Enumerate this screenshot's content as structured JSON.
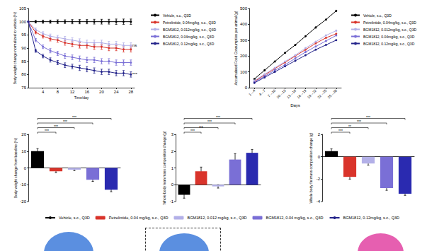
{
  "chart_data": [
    {
      "type": "line",
      "x_label": "Time/day",
      "y_label": "Body weight change normalized to vehicle (%)",
      "x": [
        0,
        2,
        4,
        6,
        8,
        10,
        12,
        14,
        16,
        18,
        20,
        22,
        24,
        26,
        28
      ],
      "xlim": [
        0,
        29
      ],
      "xticks": [
        4,
        8,
        12,
        16,
        20,
        24,
        28
      ],
      "ylim": [
        75,
        105
      ],
      "yticks": [
        75,
        80,
        85,
        90,
        95,
        100,
        105
      ],
      "grid": false,
      "marker": "circle",
      "series": [
        {
          "name": "Vehicle, s.c., Q3D",
          "color": "#000000",
          "values": [
            100,
            100,
            100,
            100,
            100,
            100,
            100,
            100,
            100,
            100,
            100,
            100,
            100,
            100,
            100
          ],
          "errors": [
            0,
            0.5,
            0.6,
            0.6,
            0.7,
            0.7,
            0.8,
            0.8,
            0.8,
            0.9,
            0.9,
            0.9,
            1.0,
            1.0,
            1.0
          ]
        },
        {
          "name": "Petrelintide, 0.04mg/kg, s.c., Q3D",
          "color": "#d9342b",
          "values": [
            100,
            96,
            94.5,
            93.5,
            93,
            92,
            91.5,
            91,
            91,
            90.5,
            90.5,
            90,
            90,
            89.5,
            89.5
          ],
          "errors": [
            0,
            0.6,
            0.7,
            0.8,
            0.8,
            0.9,
            0.9,
            1.0,
            1.0,
            1.0,
            1.0,
            1.0,
            1.0,
            1.0,
            1.0
          ]
        },
        {
          "name": "BGM1812, 0.012mg/kg, s.c., Q3D",
          "color": "#b3b0e8",
          "values": [
            100,
            97,
            95.5,
            94.5,
            94,
            93.5,
            93,
            92.5,
            92,
            92,
            92,
            91.5,
            91.5,
            91,
            91
          ],
          "errors": [
            0,
            0.6,
            0.7,
            0.8,
            0.8,
            0.9,
            0.9,
            1.0,
            1.0,
            1.0,
            1.0,
            1.0,
            1.0,
            1.0,
            1.0
          ],
          "annotation": "ns"
        },
        {
          "name": "BGM1812, 0.04mg/kg, s.c., Q3D",
          "color": "#7a6fd6",
          "values": [
            100,
            93,
            90.5,
            89,
            88,
            87,
            86.5,
            86,
            85.5,
            85.5,
            85,
            85,
            84.5,
            84.5,
            84.5
          ],
          "errors": [
            0,
            0.6,
            0.7,
            0.8,
            0.8,
            0.9,
            0.9,
            1.0,
            1.0,
            1.0,
            1.0,
            1.0,
            1.0,
            1.0,
            1.0
          ]
        },
        {
          "name": "BGM1812, 0.12mg/kg, s.c., Q3D",
          "color": "#23238a",
          "values": [
            100,
            89,
            87,
            85.5,
            84.5,
            83.5,
            83,
            82.5,
            82,
            81.5,
            81,
            81,
            80.5,
            80.5,
            80
          ],
          "errors": [
            0,
            0.6,
            0.7,
            0.8,
            0.8,
            0.9,
            0.9,
            1.0,
            1.0,
            1.0,
            1.0,
            1.0,
            1.0,
            1.0,
            1.0
          ],
          "annotation": "***"
        }
      ]
    },
    {
      "type": "line",
      "x_label": "Days",
      "y_label": "Accumulated Food Consumption per animal (g)",
      "categories": [
        "1→4",
        "4→7",
        "7→10",
        "10→13",
        "13→16",
        "16→19",
        "19→22",
        "22→25",
        "25→28"
      ],
      "ylim": [
        0,
        500
      ],
      "yticks": [
        0,
        100,
        200,
        300,
        400,
        500
      ],
      "grid": false,
      "marker": "circle",
      "series": [
        {
          "name": "Vehicle, s.c., Q3D",
          "color": "#000000",
          "values": [
            55,
            110,
            165,
            220,
            270,
            325,
            380,
            430,
            485
          ]
        },
        {
          "name": "Petrelintide, 0.04mg/kg, s.c., Q3D",
          "color": "#d9342b",
          "values": [
            40,
            80,
            120,
            160,
            200,
            240,
            280,
            315,
            340
          ]
        },
        {
          "name": "BGM1812, 0.012mg/kg, s.c., Q3D",
          "color": "#b3b0e8",
          "values": [
            45,
            85,
            125,
            165,
            205,
            250,
            290,
            330,
            360
          ]
        },
        {
          "name": "BGM1812, 0.04mg/kg, s.c., Q3D",
          "color": "#7a6fd6",
          "values": [
            35,
            72,
            110,
            145,
            185,
            225,
            260,
            295,
            330
          ]
        },
        {
          "name": "BGM1812, 0.12mg/kg, s.c., Q3D",
          "color": "#23238a",
          "values": [
            30,
            65,
            100,
            135,
            170,
            205,
            240,
            270,
            300
          ]
        }
      ]
    },
    {
      "type": "bar",
      "y_label": "Body weight change from baseline (%)",
      "categories": [
        null,
        null,
        null,
        null,
        null
      ],
      "ylim": [
        -20,
        20
      ],
      "yticks": [
        -20,
        -10,
        0,
        10,
        20
      ],
      "grid": false,
      "tick_labels": "y",
      "series": [
        {
          "name": "Vehicle, s.c., Q3D",
          "color": "#000000",
          "values": [
            10,
            null,
            null,
            null,
            null
          ],
          "errors": [
            1.5,
            null,
            null,
            null,
            null
          ]
        },
        {
          "name": "Petrelintide, 0.04 mg/kg, s.c., Q3D",
          "color": "#d9342b",
          "values": [
            null,
            -2,
            null,
            null,
            null
          ],
          "errors": [
            null,
            0.8,
            null,
            null,
            null
          ]
        },
        {
          "name": "BGM1812, 0.012 mg/kg, s.c., Q3D",
          "color": "#b3b0e8",
          "values": [
            null,
            null,
            -1,
            null,
            null
          ],
          "errors": [
            null,
            null,
            0.6,
            null,
            null
          ]
        },
        {
          "name": "BGM1812, 0.04 mg/kg, s.c., Q3D",
          "color": "#7a6fd6",
          "values": [
            null,
            null,
            null,
            -7,
            null
          ],
          "errors": [
            null,
            null,
            null,
            1.0,
            null
          ]
        },
        {
          "name": "BGM1812, 0.12mg/kg, s.c., Q3D",
          "color": "#2a2ab0",
          "values": [
            null,
            null,
            null,
            null,
            -13
          ],
          "errors": [
            null,
            null,
            null,
            null,
            1.2
          ]
        }
      ],
      "comparisons": [
        {
          "from": 0,
          "to": 1,
          "label": "***"
        },
        {
          "from": 0,
          "to": 2,
          "label": "***"
        },
        {
          "from": 0,
          "to": 3,
          "label": "***"
        },
        {
          "from": 0,
          "to": 4,
          "label": "***"
        }
      ]
    },
    {
      "type": "bar",
      "y_label": "Whole body lean mass composition change (g)",
      "categories": [
        null,
        null,
        null,
        null,
        null
      ],
      "ylim": [
        -1,
        3
      ],
      "yticks": [
        -1,
        0,
        1,
        2,
        3
      ],
      "grid": false,
      "tick_labels": "y",
      "series": [
        {
          "name": "Vehicle, s.c., Q3D",
          "color": "#000000",
          "values": [
            -0.6,
            null,
            null,
            null,
            null
          ],
          "errors": [
            0.2,
            null,
            null,
            null,
            null
          ]
        },
        {
          "name": "Petrelintide, 0.04 mg/kg, s.c., Q3D",
          "color": "#d9342b",
          "values": [
            null,
            0.8,
            null,
            null,
            null
          ],
          "errors": [
            null,
            0.25,
            null,
            null,
            null
          ]
        },
        {
          "name": "BGM1812, 0.012 mg/kg, s.c., Q3D",
          "color": "#b3b0e8",
          "values": [
            null,
            null,
            -0.1,
            null,
            null
          ],
          "errors": [
            null,
            null,
            0.1,
            null,
            null
          ]
        },
        {
          "name": "BGM1812, 0.04 mg/kg, s.c., Q3D",
          "color": "#7a6fd6",
          "values": [
            null,
            null,
            null,
            1.5,
            null
          ],
          "errors": [
            null,
            null,
            null,
            0.35,
            null
          ]
        },
        {
          "name": "BGM1812, 0.12mg/kg, s.c., Q3D",
          "color": "#2a2ab0",
          "values": [
            null,
            null,
            null,
            null,
            1.9
          ],
          "errors": [
            null,
            null,
            null,
            null,
            0.2
          ]
        }
      ],
      "comparisons": [
        {
          "from": 0,
          "to": 1,
          "label": "***"
        },
        {
          "from": 0,
          "to": 2,
          "label": "ns"
        },
        {
          "from": 0,
          "to": 3,
          "label": "***"
        },
        {
          "from": 0,
          "to": 4,
          "label": "***"
        }
      ]
    },
    {
      "type": "bar",
      "y_label": "Whole body fat mass composition change (g)",
      "categories": [
        null,
        null,
        null,
        null,
        null
      ],
      "ylim": [
        -4,
        2
      ],
      "yticks": [
        -4,
        -2,
        0,
        2
      ],
      "grid": false,
      "tick_labels": "y",
      "series": [
        {
          "name": "Vehicle, s.c., Q3D",
          "color": "#000000",
          "values": [
            0.5,
            null,
            null,
            null,
            null
          ],
          "errors": [
            0.2,
            null,
            null,
            null,
            null
          ]
        },
        {
          "name": "Petrelintide, 0.04 mg/kg, s.c., Q3D",
          "color": "#d9342b",
          "values": [
            null,
            -1.8,
            null,
            null,
            null
          ],
          "errors": [
            null,
            0.2,
            null,
            null,
            null
          ]
        },
        {
          "name": "BGM1812, 0.012 mg/kg, s.c., Q3D",
          "color": "#b3b0e8",
          "values": [
            null,
            null,
            -0.6,
            null,
            null
          ],
          "errors": [
            null,
            null,
            0.15,
            null,
            null
          ]
        },
        {
          "name": "BGM1812, 0.04 mg/kg, s.c., Q3D",
          "color": "#7a6fd6",
          "values": [
            null,
            null,
            null,
            -2.8,
            null
          ],
          "errors": [
            null,
            null,
            null,
            0.2,
            null
          ]
        },
        {
          "name": "BGM1812, 0.12mg/kg, s.c., Q3D",
          "color": "#2a2ab0",
          "values": [
            null,
            null,
            null,
            null,
            -3.3
          ],
          "errors": [
            null,
            null,
            null,
            null,
            0.15
          ]
        }
      ],
      "comparisons": [
        {
          "from": 0,
          "to": 1,
          "label": "***"
        },
        {
          "from": 0,
          "to": 2,
          "label": "**"
        },
        {
          "from": 0,
          "to": 3,
          "label": "***"
        },
        {
          "from": 0,
          "to": 4,
          "label": "***"
        }
      ]
    }
  ]
}
